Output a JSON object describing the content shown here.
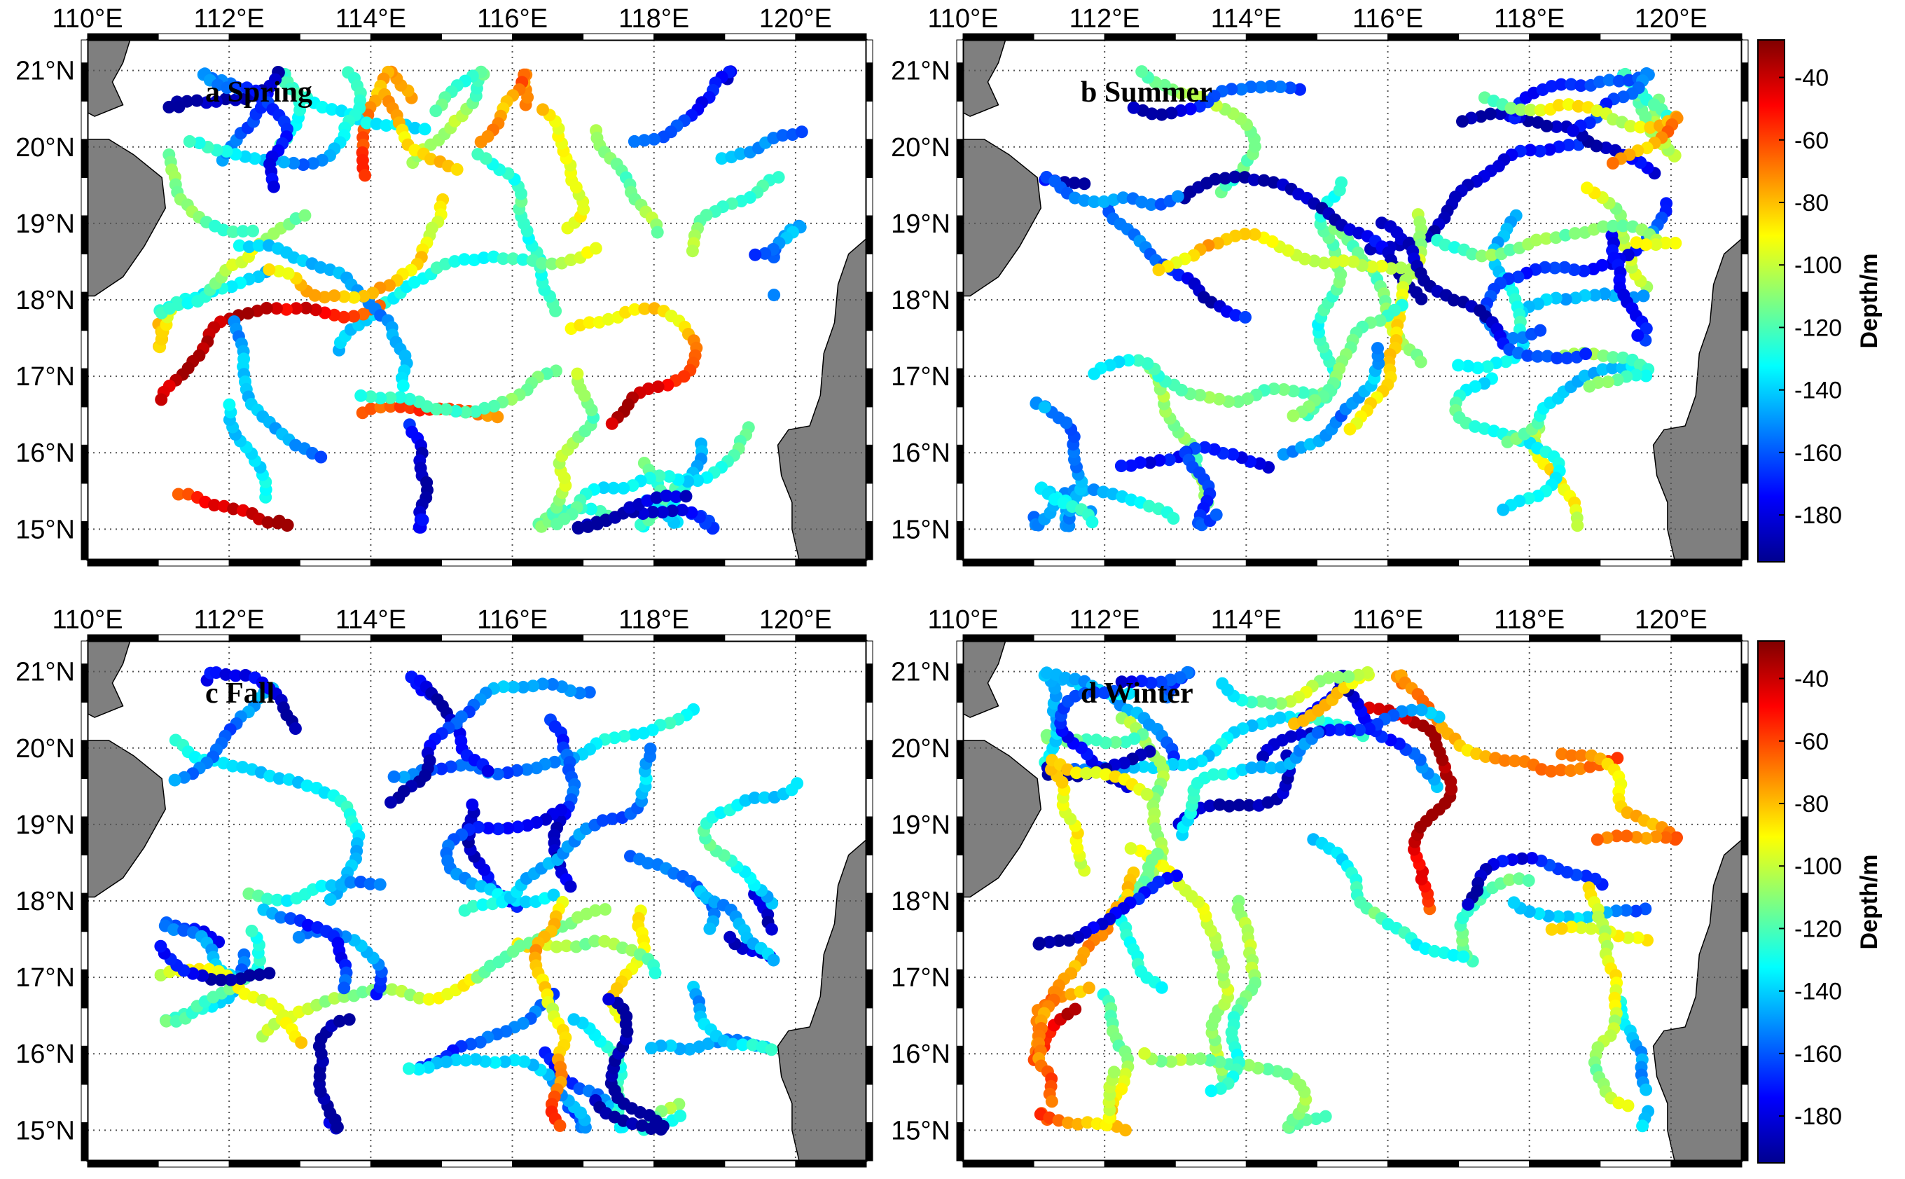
{
  "figure": {
    "lon_range": [
      110,
      121
    ],
    "lat_range": [
      14.6,
      21.4
    ],
    "lon_ticks": [
      "110°E",
      "112°E",
      "114°E",
      "116°E",
      "118°E",
      "120°E"
    ],
    "lat_ticks": [
      "15°N",
      "16°N",
      "17°N",
      "18°N",
      "19°N",
      "20°N",
      "21°N"
    ],
    "land_color": "#7f7f7f",
    "colormap": "jet",
    "colorbar": {
      "label": "Depth/m",
      "range": [
        -195,
        -28
      ],
      "ticks": [
        "-40",
        "-60",
        "-80",
        "-100",
        "-120",
        "-140",
        "-160",
        "-180"
      ]
    }
  },
  "panels": [
    {
      "label": "a Spring",
      "season": "spring"
    },
    {
      "label": "b Summer",
      "season": "summer"
    },
    {
      "label": "c Fall",
      "season": "fall"
    },
    {
      "label": "d Winter",
      "season": "winter"
    }
  ]
}
